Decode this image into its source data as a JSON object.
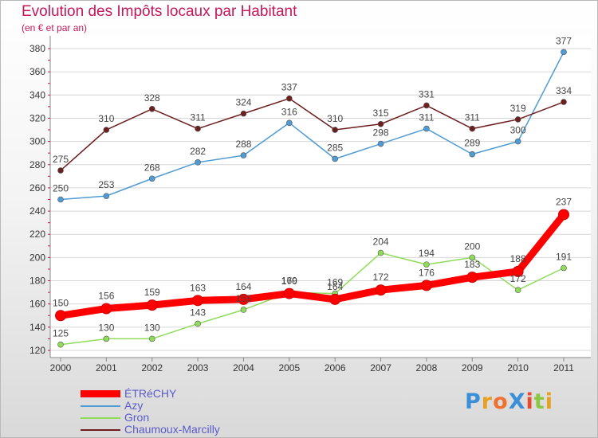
{
  "chart_data": {
    "type": "line",
    "title": "Evolution des Impôts locaux par Habitant",
    "subtitle": "(en € et par an)",
    "x": [
      "2000",
      "2001",
      "2002",
      "2003",
      "2004",
      "2005",
      "2006",
      "2007",
      "2008",
      "2009",
      "2010",
      "2011"
    ],
    "yticks": [
      120,
      140,
      160,
      180,
      200,
      220,
      240,
      260,
      280,
      300,
      320,
      340,
      360,
      380
    ],
    "ylim": [
      120,
      380
    ],
    "grid": "horizontal",
    "legend_position": "bottom-left",
    "series": [
      {
        "name": "ÉTRéCHY",
        "color": "#ff0000",
        "emphasis": true,
        "values": [
          150,
          156,
          159,
          163,
          164,
          169,
          164,
          172,
          176,
          183,
          188,
          237
        ],
        "labels": [
          "150",
          "156",
          "159",
          "163",
          "164",
          "169",
          "164",
          "172",
          "176",
          "183",
          "188",
          "237"
        ]
      },
      {
        "name": "Azy",
        "color": "#4f9bd4",
        "emphasis": false,
        "values": [
          250,
          253,
          268,
          282,
          288,
          316,
          285,
          298,
          311,
          289,
          300,
          377
        ],
        "labels": [
          "250",
          "253",
          "268",
          "282",
          "288",
          "316",
          "285",
          "298",
          "311",
          "289",
          "300",
          "377"
        ]
      },
      {
        "name": "Gron",
        "color": "#8fdc5a",
        "emphasis": false,
        "values": [
          125,
          130,
          130,
          143,
          155,
          170,
          169,
          204,
          194,
          200,
          172,
          191
        ],
        "labels": [
          "125",
          "130",
          "130",
          "143",
          "155",
          "170",
          "169",
          "204",
          "194",
          "200",
          "172",
          "191"
        ]
      },
      {
        "name": "Chaumoux-Marcilly",
        "color": "#6d1f1f",
        "emphasis": false,
        "values": [
          275,
          310,
          328,
          311,
          324,
          337,
          310,
          315,
          331,
          311,
          319,
          334
        ],
        "labels": [
          "275",
          "310",
          "328",
          "311",
          "324",
          "337",
          "310",
          "315",
          "331",
          "311",
          "319",
          "334"
        ]
      }
    ]
  },
  "legend": [
    {
      "label": "ÉTRéCHY",
      "color": "#ff0000",
      "text_color": "#5a5acd"
    },
    {
      "label": "Azy",
      "color": "#4f9bd4",
      "text_color": "#5a5acd"
    },
    {
      "label": "Gron",
      "color": "#8fdc5a",
      "text_color": "#5a5acd"
    },
    {
      "label": "Chaumoux-Marcilly",
      "color": "#6d1f1f",
      "text_color": "#5a5acd"
    }
  ],
  "logo": {
    "text": "ProXiti",
    "colors": [
      "#3a8fd8",
      "#e8a020",
      "#f07030",
      "#3a8fd8",
      "#e84a30",
      "#8dc63f",
      "#e8a020"
    ]
  }
}
